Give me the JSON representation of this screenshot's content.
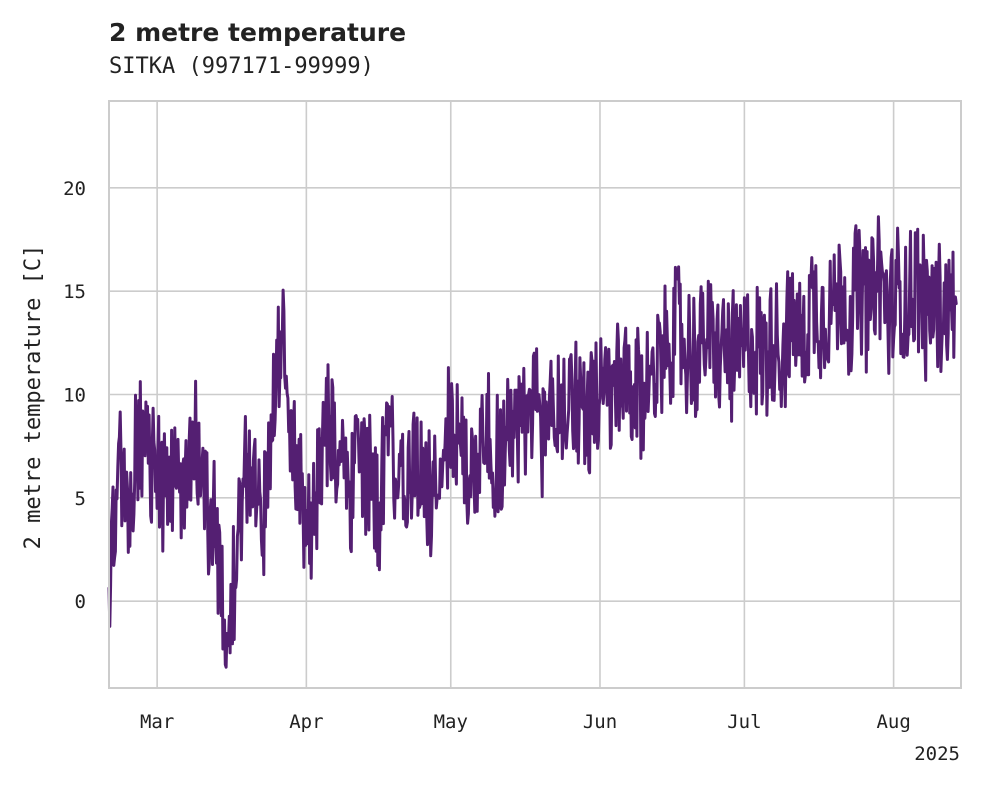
{
  "chart_data": {
    "type": "line",
    "title": "2 metre temperature",
    "subtitle": "SITKA (997171-99999)",
    "xlabel": "",
    "ylabel": "2 metre temperature [C]",
    "x_start": "2025-02-19",
    "x_end": "2025-08-15",
    "xlim": [
      "2025-02-19",
      "2025-08-15"
    ],
    "ylim": [
      -4.2,
      24.2
    ],
    "yticks": [
      0,
      5,
      10,
      15,
      20
    ],
    "xticks": [
      {
        "date": "2025-03-01",
        "label": "Mar"
      },
      {
        "date": "2025-04-01",
        "label": "Apr"
      },
      {
        "date": "2025-05-01",
        "label": "May"
      },
      {
        "date": "2025-06-01",
        "label": "Jun"
      },
      {
        "date": "2025-07-01",
        "label": "Jul"
      },
      {
        "date": "2025-08-01",
        "label": "Aug"
      }
    ],
    "year_label": "2025",
    "grid": true,
    "legend": "none",
    "series": [
      {
        "color": "#541f72",
        "x": [
          "2025-02-19",
          "2025-02-21",
          "2025-02-23",
          "2025-02-25",
          "2025-02-27",
          "2025-03-01",
          "2025-03-03",
          "2025-03-05",
          "2025-03-07",
          "2025-03-09",
          "2025-03-11",
          "2025-03-13",
          "2025-03-15",
          "2025-03-17",
          "2025-03-19",
          "2025-03-21",
          "2025-03-23",
          "2025-03-25",
          "2025-03-27",
          "2025-03-29",
          "2025-03-31",
          "2025-04-02",
          "2025-04-04",
          "2025-04-06",
          "2025-04-08",
          "2025-04-10",
          "2025-04-12",
          "2025-04-14",
          "2025-04-16",
          "2025-04-18",
          "2025-04-20",
          "2025-04-22",
          "2025-04-24",
          "2025-04-26",
          "2025-04-28",
          "2025-04-30",
          "2025-05-02",
          "2025-05-04",
          "2025-05-06",
          "2025-05-08",
          "2025-05-10",
          "2025-05-12",
          "2025-05-14",
          "2025-05-16",
          "2025-05-18",
          "2025-05-20",
          "2025-05-22",
          "2025-05-24",
          "2025-05-26",
          "2025-05-28",
          "2025-05-30",
          "2025-06-01",
          "2025-06-03",
          "2025-06-05",
          "2025-06-07",
          "2025-06-09",
          "2025-06-11",
          "2025-06-13",
          "2025-06-15",
          "2025-06-17",
          "2025-06-19",
          "2025-06-21",
          "2025-06-23",
          "2025-06-25",
          "2025-06-27",
          "2025-06-29",
          "2025-07-01",
          "2025-07-03",
          "2025-07-05",
          "2025-07-07",
          "2025-07-09",
          "2025-07-11",
          "2025-07-13",
          "2025-07-15",
          "2025-07-17",
          "2025-07-19",
          "2025-07-21",
          "2025-07-23",
          "2025-07-25",
          "2025-07-27",
          "2025-07-29",
          "2025-07-31",
          "2025-08-02",
          "2025-08-04",
          "2025-08-06",
          "2025-08-08",
          "2025-08-10",
          "2025-08-12",
          "2025-08-14"
        ],
        "y": [
          0.6,
          6.5,
          3.6,
          8.2,
          7.3,
          6.1,
          5.9,
          6.4,
          4.5,
          8.0,
          5.6,
          3.5,
          -1.8,
          1.4,
          6.9,
          5.5,
          4.1,
          8.3,
          12.5,
          8.7,
          5.3,
          3.4,
          7.2,
          9.3,
          6.0,
          4.8,
          8.1,
          5.6,
          4.4,
          7.9,
          5.3,
          6.1,
          7.2,
          5.0,
          6.4,
          7.7,
          8.6,
          7.1,
          6.0,
          9.1,
          6.8,
          7.5,
          8.9,
          7.8,
          10.2,
          8.3,
          9.6,
          8.8,
          10.4,
          9.3,
          9.9,
          9.4,
          9.7,
          10.6,
          10.1,
          9.8,
          10.2,
          11.8,
          12.7,
          13.4,
          12.1,
          11.6,
          12.9,
          11.9,
          12.3,
          11.4,
          12.1,
          12.7,
          11.8,
          13.2,
          12.1,
          13.5,
          12.4,
          14.6,
          13.9,
          14.2,
          15.1,
          13.8,
          15.4,
          14.1,
          16.2,
          13.6,
          14.8,
          14.3,
          15.7,
          13.9,
          14.5,
          14.2,
          14.4
        ]
      }
    ]
  }
}
